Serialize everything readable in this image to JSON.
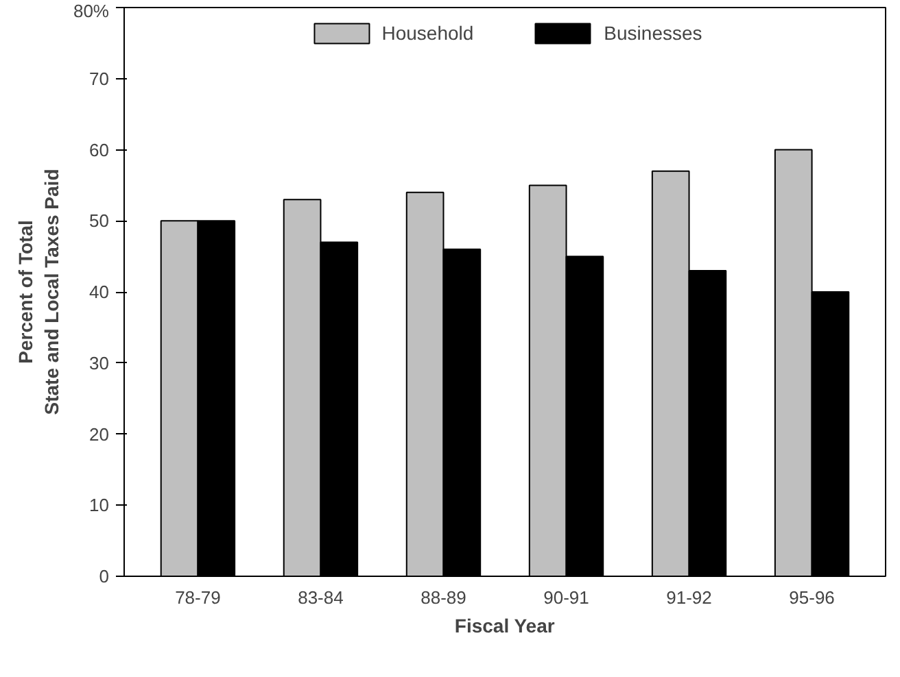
{
  "chart_data": {
    "type": "bar",
    "xlabel": "Fiscal Year",
    "ylabel": "Percent of Total\nState and Local Taxes Paid",
    "categories": [
      "78-79",
      "83-84",
      "88-89",
      "90-91",
      "91-92",
      "95-96"
    ],
    "series": [
      {
        "name": "Household",
        "color": "#bfbfbf",
        "values": [
          50,
          53,
          54,
          55,
          57,
          60
        ]
      },
      {
        "name": "Businesses",
        "color": "#000000",
        "values": [
          50,
          47,
          46,
          45,
          43,
          40
        ]
      }
    ],
    "ylim": [
      0,
      80
    ],
    "yticks": [
      0,
      10,
      20,
      30,
      40,
      50,
      60,
      70,
      {
        "value": 80,
        "label": "80%"
      }
    ],
    "grid": false,
    "legend": "top"
  }
}
